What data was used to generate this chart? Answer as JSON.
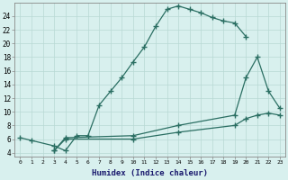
{
  "xlabel": "Humidex (Indice chaleur)",
  "background_color": "#d8f0ee",
  "grid_color": "#b8d8d4",
  "line_color": "#2a6e62",
  "xlim": [
    -0.5,
    23.5
  ],
  "ylim": [
    3.5,
    26.0
  ],
  "xticks": [
    0,
    1,
    2,
    3,
    4,
    5,
    6,
    7,
    8,
    9,
    10,
    11,
    12,
    13,
    14,
    15,
    16,
    17,
    18,
    19,
    20,
    21,
    22,
    23
  ],
  "yticks": [
    4,
    6,
    8,
    10,
    12,
    14,
    16,
    18,
    20,
    22,
    24
  ],
  "curve1_x": [
    0,
    1,
    3,
    4,
    5,
    6,
    7,
    8,
    9,
    10,
    11,
    12,
    13,
    14,
    15,
    16,
    17,
    18,
    19,
    20
  ],
  "curve1_y": [
    6.2,
    5.8,
    5.0,
    4.3,
    6.5,
    6.5,
    11.0,
    13.0,
    15.0,
    17.3,
    19.5,
    22.5,
    25.0,
    25.5,
    25.0,
    24.5,
    23.8,
    23.3,
    23.0,
    21.0
  ],
  "curve2_x": [
    3,
    4,
    10,
    14,
    19,
    20,
    21,
    22,
    23
  ],
  "curve2_y": [
    4.3,
    6.2,
    6.5,
    8.0,
    9.5,
    15.0,
    18.0,
    13.0,
    10.5
  ],
  "curve3_x": [
    3,
    4,
    10,
    14,
    19,
    20,
    21,
    22,
    23
  ],
  "curve3_y": [
    4.3,
    6.0,
    6.0,
    7.0,
    8.0,
    9.0,
    9.5,
    9.8,
    9.5
  ]
}
